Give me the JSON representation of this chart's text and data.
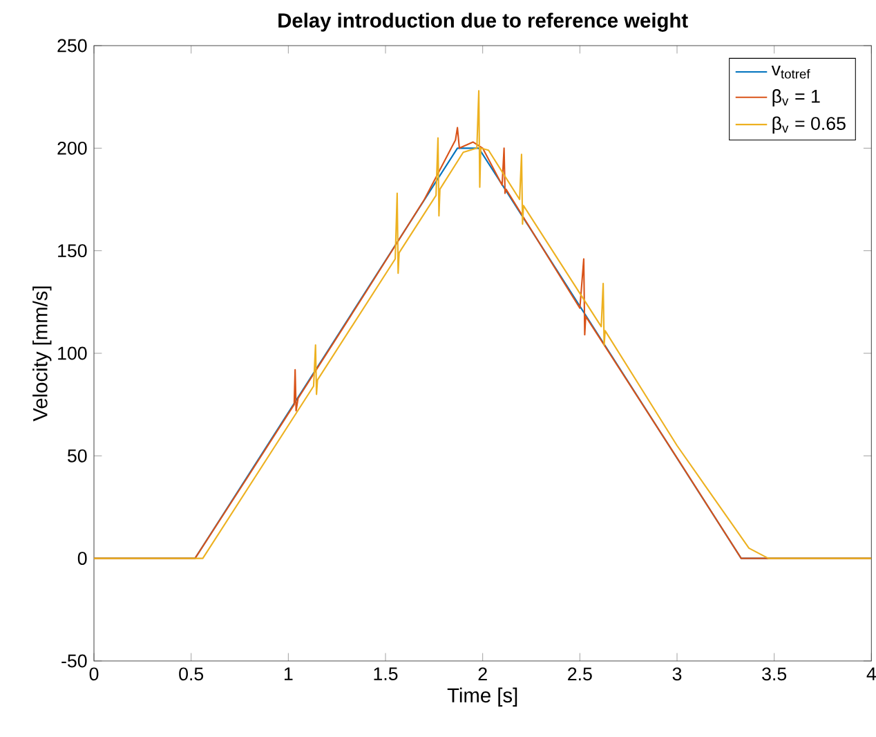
{
  "chart_data": {
    "type": "line",
    "title": "Delay introduction due to reference weight",
    "xlabel": "Time [s]",
    "ylabel": "Velocity [mm/s]",
    "xlim": [
      0,
      4
    ],
    "ylim": [
      -50,
      250
    ],
    "xticks": [
      0,
      0.5,
      1,
      1.5,
      2,
      2.5,
      3,
      3.5,
      4
    ],
    "yticks": [
      -50,
      0,
      50,
      100,
      150,
      200,
      250
    ],
    "legend": "top right",
    "grid": false,
    "marker": "none",
    "line_style": "solid",
    "series": [
      {
        "name": "v$_{totref}$",
        "color": "#0072bd",
        "x": [
          0,
          0.52,
          1.87,
          1.98,
          3.33,
          4
        ],
        "values": [
          0,
          0,
          200,
          200,
          0,
          0
        ]
      },
      {
        "name": "β$_{v}$ = 1",
        "color": "#d95319",
        "x": [
          0,
          0.52,
          0.8,
          1.03,
          1.035,
          1.04,
          1.05,
          1.4,
          1.7,
          1.86,
          1.87,
          1.88,
          1.95,
          2.0,
          2.1,
          2.11,
          2.115,
          2.12,
          2.5,
          2.52,
          2.525,
          2.53,
          3.0,
          3.33,
          4
        ],
        "values": [
          0,
          0,
          41,
          75,
          92,
          72,
          78,
          130,
          175,
          204,
          210,
          200,
          203,
          200,
          182,
          200,
          178,
          180,
          122,
          146,
          109,
          118,
          49,
          0,
          0
        ]
      },
      {
        "name": "β$_{v}$ = 0.65",
        "color": "#edb120",
        "x": [
          0,
          0.56,
          1.13,
          1.14,
          1.145,
          1.15,
          1.55,
          1.56,
          1.565,
          1.57,
          1.76,
          1.77,
          1.775,
          1.78,
          1.9,
          1.97,
          1.98,
          1.985,
          1.99,
          2.03,
          2.19,
          2.2,
          2.205,
          2.21,
          2.61,
          2.62,
          2.625,
          2.63,
          3.0,
          3.37,
          3.47,
          4
        ],
        "values": [
          0,
          0,
          84,
          104,
          80,
          87,
          146,
          178,
          139,
          149,
          177,
          205,
          167,
          180,
          198,
          200,
          228,
          181,
          200,
          199,
          175,
          197,
          163,
          172,
          113,
          134,
          104,
          111,
          55,
          5,
          0,
          0
        ]
      }
    ]
  }
}
